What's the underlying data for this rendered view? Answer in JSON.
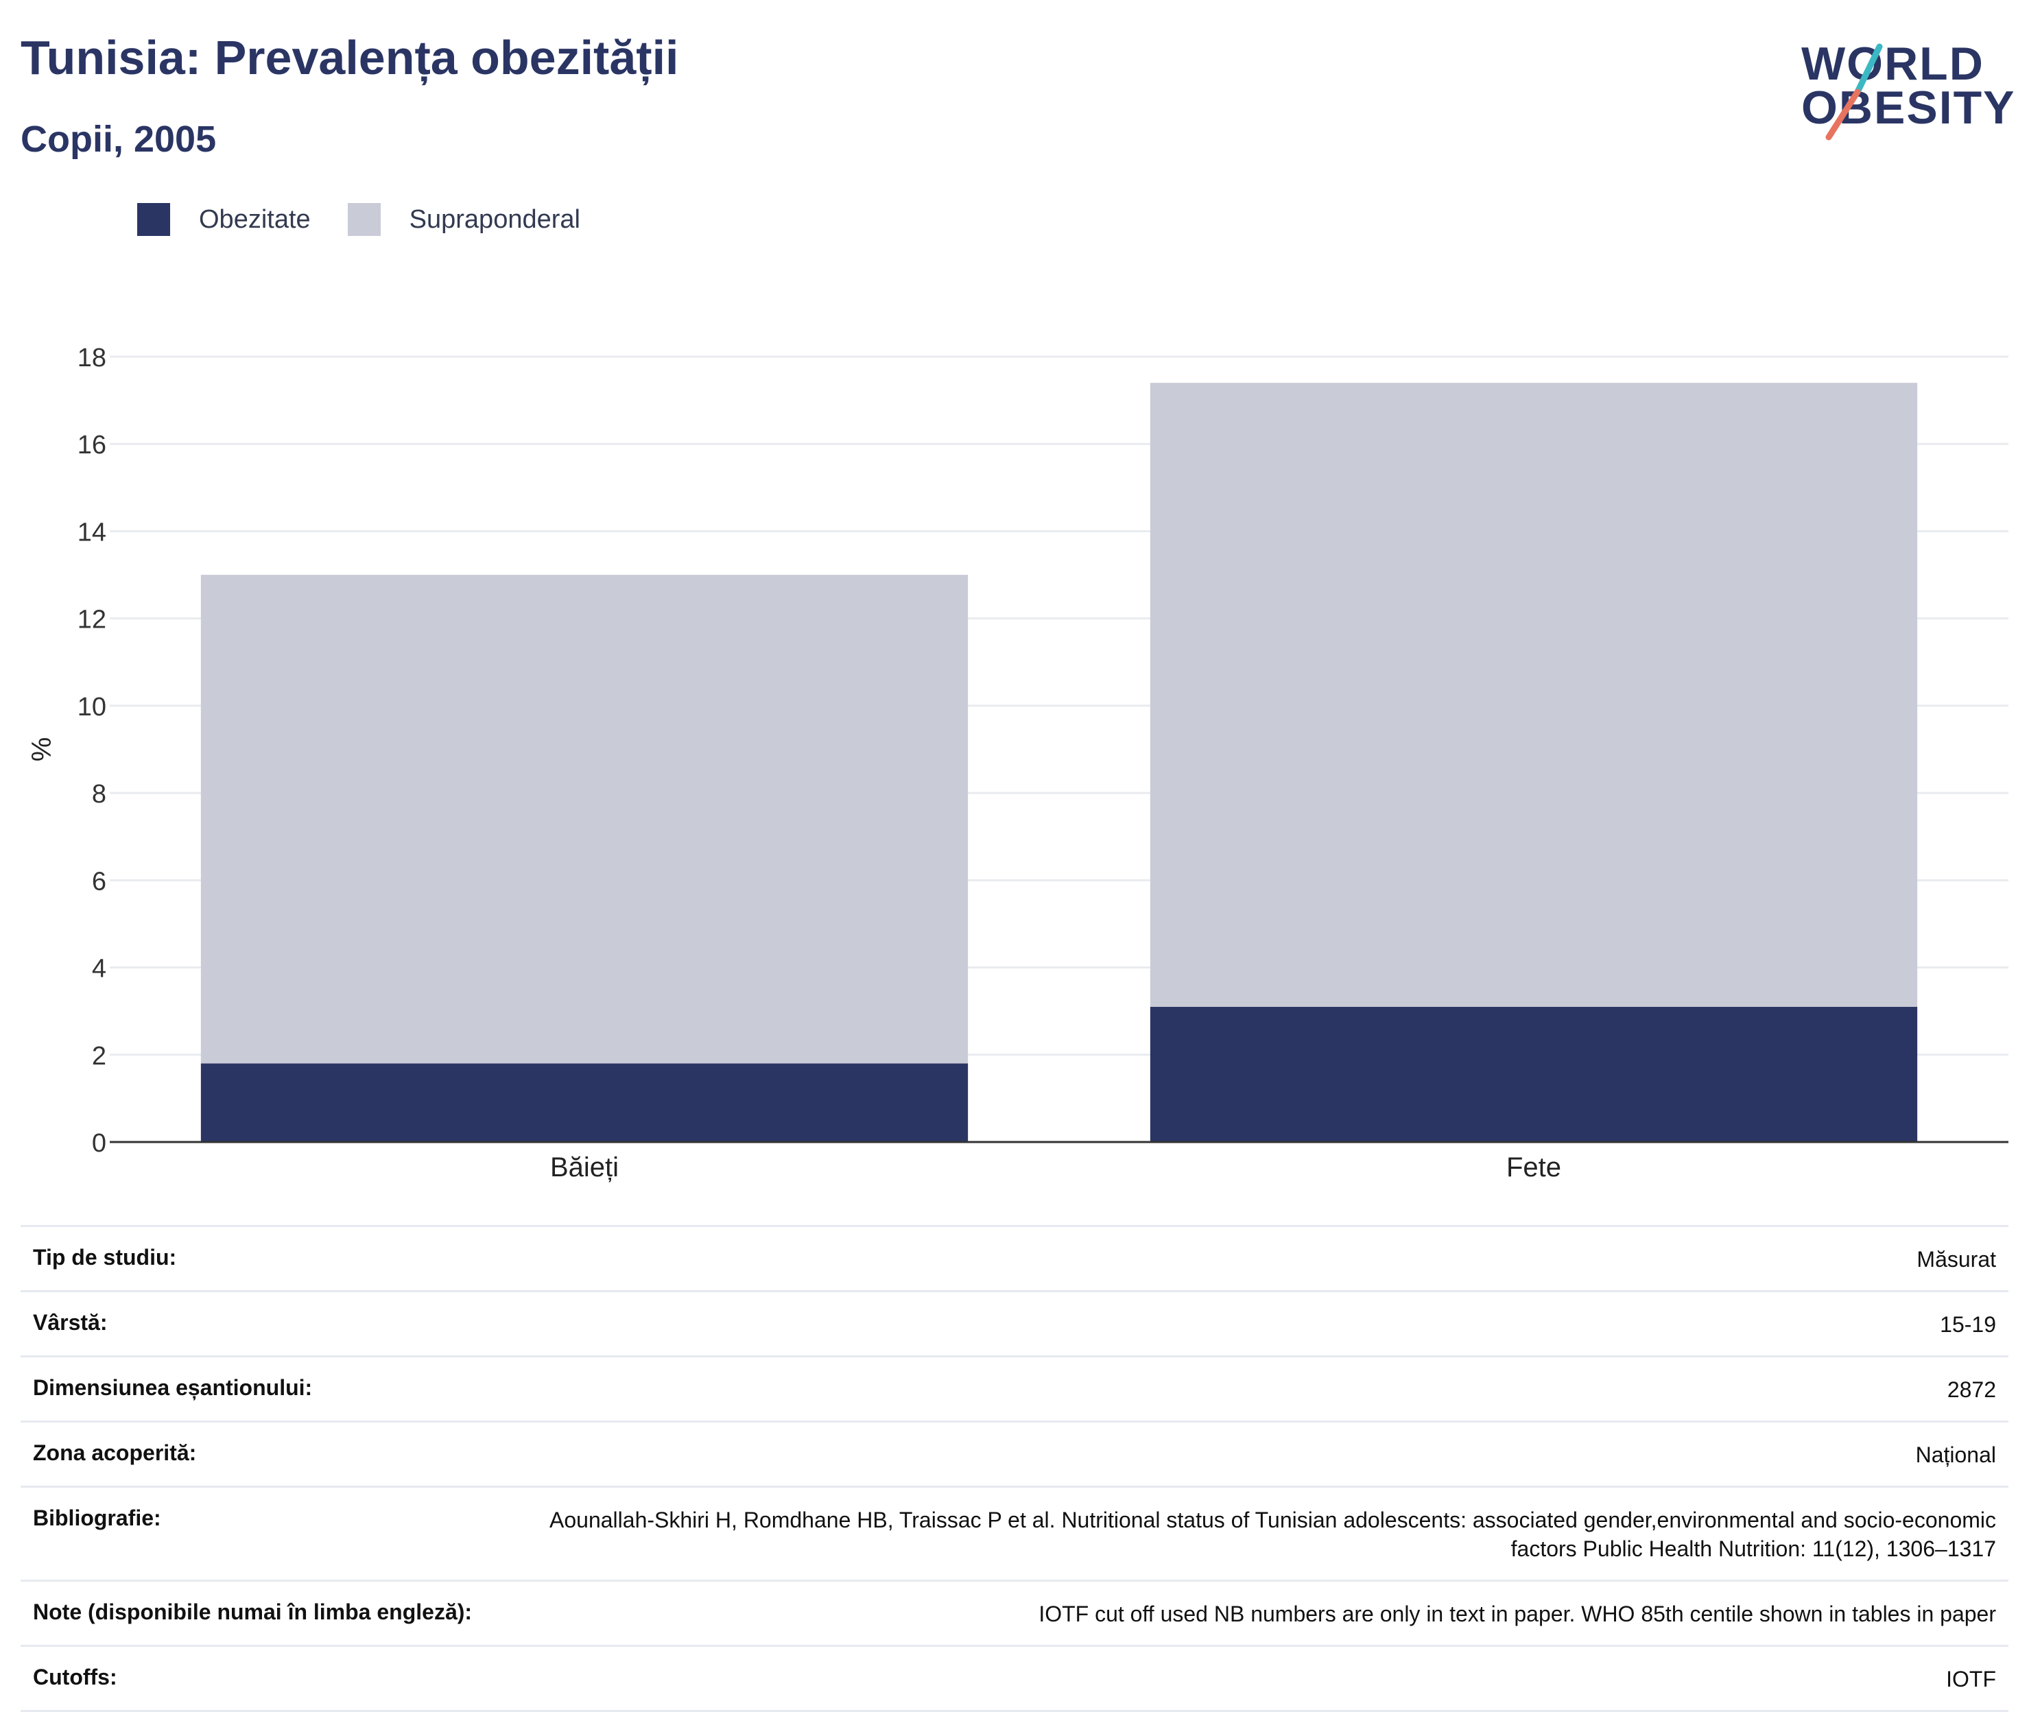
{
  "header": {
    "title": "Tunisia: Prevalența obezității",
    "subtitle": "Copii, 2005",
    "logo_line1": "WORLD",
    "logo_line2": "OBESITY"
  },
  "colors": {
    "obesity": "#2a3564",
    "overweight": "#c9cbd7",
    "grid": "#e9ebef",
    "axis": "#333333",
    "logo_teal": "#3bb8c3",
    "logo_coral": "#e8735f"
  },
  "legend": {
    "obesity_label": "Obezitate",
    "overweight_label": "Supraponderal"
  },
  "chart_data": {
    "type": "bar",
    "stacked": true,
    "categories": [
      "Băieți",
      "Fete"
    ],
    "series": [
      {
        "name": "Obezitate",
        "values": [
          1.8,
          3.1
        ]
      },
      {
        "name": "Supraponderal",
        "values": [
          11.2,
          14.3
        ]
      }
    ],
    "totals": [
      13.0,
      17.4
    ],
    "ylabel": "%",
    "xlabel": "",
    "ylim": [
      0,
      18
    ],
    "yticks": [
      0,
      2,
      4,
      6,
      8,
      10,
      12,
      14,
      16,
      18
    ],
    "grid": true,
    "legend_position": "top-left"
  },
  "meta": [
    {
      "key": "Tip de studiu:",
      "value": "Măsurat"
    },
    {
      "key": "Vârstă:",
      "value": "15-19"
    },
    {
      "key": "Dimensiunea eșantionului:",
      "value": "2872"
    },
    {
      "key": "Zona acoperită:",
      "value": "Național"
    },
    {
      "key": "Bibliografie:",
      "value": "Aounallah-Skhiri H, Romdhane HB, Traissac P et al. Nutritional status of Tunisian adolescents: associated gender,environmental and socio-economic factors Public Health Nutrition: 11(12), 1306–1317"
    },
    {
      "key": "Note (disponibile numai în limba engleză):",
      "value": "IOTF cut off used NB numbers are only in text in paper. WHO 85th centile shown in tables in paper"
    },
    {
      "key": "Cutoffs:",
      "value": "IOTF"
    }
  ]
}
